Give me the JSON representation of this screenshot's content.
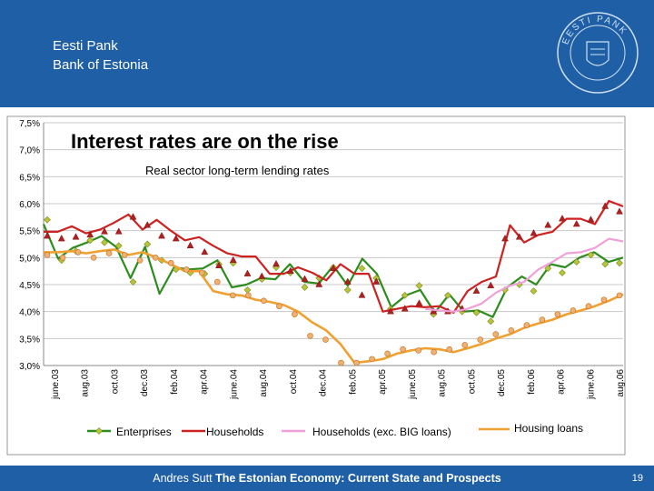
{
  "header": {
    "bank_et": "Eesti Pank",
    "bank_en": "Bank of Estonia",
    "seal_text": "EESTI PANK"
  },
  "footer": {
    "author": "Andres Sutt",
    "title": "The Estonian Economy: Current State and Prospects",
    "page": "19"
  },
  "colors": {
    "header": "#1f5fa6",
    "enterprises": "#2e8b1e",
    "households": "#cc2222",
    "households_exc": "#f0a0d8",
    "housing": "#f0a030"
  },
  "chart_data": {
    "type": "line",
    "title": "Interest rates are on the rise",
    "subtitle": "Real sector long-term lending rates",
    "ylim": [
      3.0,
      7.5
    ],
    "y_ticks": [
      "3,0%",
      "3,5%",
      "4,0%",
      "4,5%",
      "5,0%",
      "5,5%",
      "6,0%",
      "6,5%",
      "7,0%",
      "7,5%"
    ],
    "x_tick_labels": [
      "june.03",
      "aug.03",
      "oct.03",
      "dec.03",
      "feb.04",
      "apr.04",
      "june.04",
      "aug.04",
      "oct.04",
      "dec.04",
      "feb.05",
      "apr.05",
      "june.05",
      "aug.05",
      "oct.05",
      "dec.05",
      "feb.06",
      "apr.06",
      "june.06",
      "aug.06"
    ],
    "n_points": 39,
    "series": [
      {
        "name": "Enterprises",
        "color": "#2e8b1e",
        "marker": "diamond",
        "line": [
          5.62,
          4.98,
          5.18,
          5.28,
          5.4,
          5.2,
          4.62,
          5.2,
          4.33,
          4.82,
          4.78,
          4.8,
          4.95,
          4.45,
          4.5,
          4.62,
          4.6,
          4.88,
          4.55,
          4.52,
          4.85,
          4.48,
          4.98,
          4.7,
          4.08,
          4.3,
          4.4,
          3.98,
          4.32,
          4.0,
          4.02,
          3.9,
          4.45,
          4.65,
          4.5,
          4.88,
          4.82,
          5.0,
          5.1,
          4.92,
          5.0
        ],
        "points": [
          5.7,
          4.95,
          5.12,
          5.32,
          5.28,
          5.22,
          4.55,
          5.25,
          4.95,
          4.78,
          4.72,
          4.7,
          4.88,
          4.9,
          4.4,
          4.6,
          4.82,
          4.72,
          4.45,
          4.62,
          4.82,
          4.4,
          4.8,
          4.62,
          4.05,
          4.3,
          4.48,
          3.95,
          4.3,
          4.0,
          3.98,
          3.82,
          4.4,
          4.5,
          4.38,
          4.8,
          4.72,
          4.92,
          5.05,
          4.88,
          4.9
        ]
      },
      {
        "name": "Households",
        "color": "#cc2222",
        "marker": "triangle",
        "line": [
          5.48,
          5.48,
          5.58,
          5.45,
          5.52,
          5.65,
          5.8,
          5.52,
          5.7,
          5.5,
          5.32,
          5.38,
          5.22,
          5.08,
          5.02,
          5.02,
          4.7,
          4.7,
          4.82,
          4.72,
          4.58,
          4.88,
          4.7,
          4.7,
          4.0,
          4.05,
          4.1,
          4.08,
          4.1,
          3.98,
          4.38,
          4.55,
          4.65,
          5.6,
          5.28,
          5.42,
          5.48,
          5.72,
          5.72,
          5.62,
          6.05,
          5.95
        ],
        "points": [
          5.4,
          5.35,
          5.38,
          5.42,
          5.48,
          5.48,
          5.75,
          5.6,
          5.4,
          5.35,
          5.22,
          5.1,
          4.85,
          4.95,
          4.7,
          4.65,
          4.88,
          4.75,
          4.6,
          4.5,
          4.8,
          4.55,
          4.3,
          4.55,
          4.0,
          4.05,
          4.15,
          4.0,
          4.0,
          4.05,
          4.38,
          4.48,
          5.35,
          5.38,
          5.45,
          5.6,
          5.72,
          5.62,
          5.7,
          5.95,
          5.85
        ]
      },
      {
        "name": "Households (exc. BIG loans)",
        "color": "#f0a0d8",
        "marker": "none",
        "line": [
          null,
          null,
          null,
          null,
          null,
          null,
          null,
          null,
          null,
          null,
          null,
          null,
          null,
          null,
          null,
          null,
          null,
          null,
          null,
          null,
          null,
          null,
          null,
          null,
          null,
          null,
          null,
          4.05,
          4.02,
          4.0,
          4.05,
          4.15,
          4.35,
          4.48,
          4.55,
          4.78,
          4.92,
          5.08,
          5.1,
          5.18,
          5.35,
          5.3
        ]
      },
      {
        "name": "Housing loans",
        "color": "#f0a030",
        "marker": "circle",
        "line": [
          5.1,
          5.1,
          5.12,
          5.08,
          5.12,
          5.15,
          5.05,
          5.1,
          5.0,
          4.88,
          4.75,
          4.75,
          4.38,
          4.32,
          4.3,
          4.22,
          4.18,
          4.12,
          4.0,
          3.8,
          3.65,
          3.4,
          3.05,
          3.08,
          3.12,
          3.22,
          3.28,
          3.32,
          3.3,
          3.25,
          3.32,
          3.4,
          3.5,
          3.58,
          3.7,
          3.78,
          3.85,
          3.95,
          4.02,
          4.1,
          4.2,
          4.32
        ],
        "points": [
          5.05,
          5.0,
          5.1,
          5.0,
          5.08,
          5.05,
          4.95,
          5.0,
          4.9,
          4.78,
          4.72,
          4.55,
          4.3,
          4.3,
          4.2,
          4.1,
          3.95,
          3.55,
          3.48,
          3.05,
          3.05,
          3.12,
          3.22,
          3.3,
          3.28,
          3.25,
          3.3,
          3.38,
          3.48,
          3.58,
          3.65,
          3.75,
          3.85,
          3.95,
          4.02,
          4.1,
          4.22,
          4.3
        ]
      }
    ]
  }
}
